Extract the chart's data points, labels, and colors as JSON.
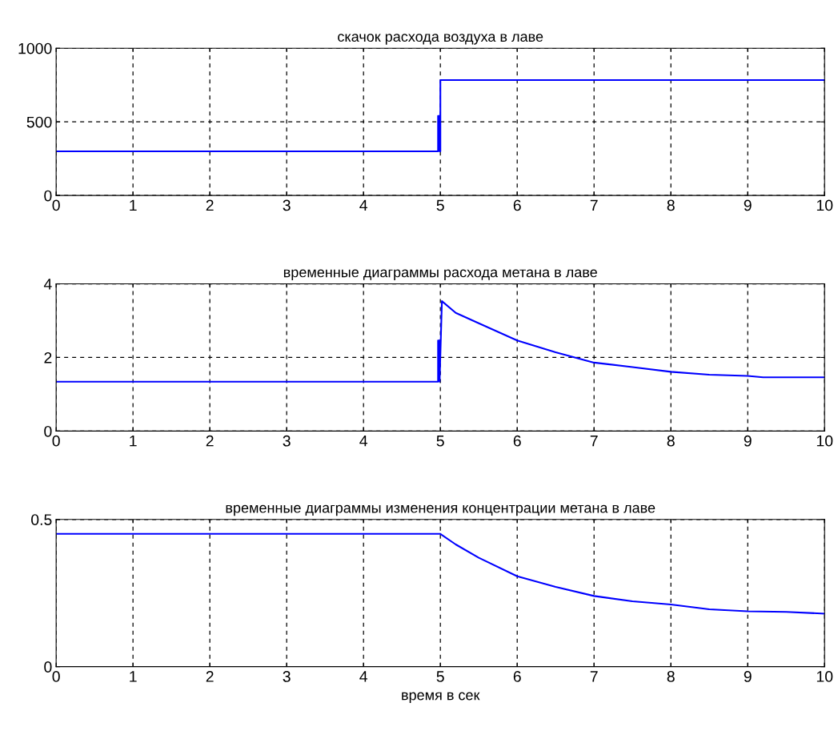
{
  "chart_data": [
    {
      "type": "line",
      "title": "скачок расхода воздуха в лаве",
      "xlim": [
        0,
        10
      ],
      "ylim": [
        0,
        1000
      ],
      "xticks": [
        0,
        1,
        2,
        3,
        4,
        5,
        6,
        7,
        8,
        9,
        10
      ],
      "yticks": [
        0,
        500,
        1000
      ],
      "grid": true,
      "line_style": "solid",
      "marker": "none",
      "series": [
        {
          "color": "#0000ff",
          "x": [
            0,
            4.97,
            4.97,
            4.99,
            4.99,
            5.0,
            5.0,
            10
          ],
          "values": [
            300,
            300,
            540,
            540,
            300,
            300,
            784,
            784
          ]
        }
      ]
    },
    {
      "type": "line",
      "title": "временные диаграммы расхода метана в лаве",
      "xlim": [
        0,
        10
      ],
      "ylim": [
        0,
        4
      ],
      "xticks": [
        0,
        1,
        2,
        3,
        4,
        5,
        6,
        7,
        8,
        9,
        10
      ],
      "yticks": [
        0,
        2,
        4
      ],
      "grid": true,
      "line_style": "solid",
      "marker": "none",
      "series": [
        {
          "color": "#0000ff",
          "x": [
            0,
            4.97,
            4.97,
            4.99,
            4.99,
            5.02,
            5.2,
            5.5,
            6,
            6.5,
            7,
            7.5,
            8,
            8.5,
            9,
            9.2,
            10
          ],
          "values": [
            1.34,
            1.34,
            2.46,
            2.46,
            1.34,
            3.53,
            3.21,
            2.93,
            2.46,
            2.14,
            1.86,
            1.74,
            1.61,
            1.53,
            1.5,
            1.46,
            1.46
          ]
        }
      ]
    },
    {
      "type": "line",
      "title": "временные диаграммы изменения концентрации метана в лаве",
      "xlabel": "время в сек",
      "xlim": [
        0,
        10
      ],
      "ylim": [
        0,
        0.5
      ],
      "xticks": [
        0,
        1,
        2,
        3,
        4,
        5,
        6,
        7,
        8,
        9,
        10
      ],
      "yticks": [
        0,
        0.5
      ],
      "grid": true,
      "line_style": "solid",
      "marker": "none",
      "series": [
        {
          "color": "#0000ff",
          "x": [
            0,
            5.0,
            5.2,
            5.5,
            6,
            6.5,
            7,
            7.5,
            8,
            8.5,
            9,
            9.5,
            10
          ],
          "values": [
            0.451,
            0.451,
            0.415,
            0.37,
            0.307,
            0.271,
            0.24,
            0.222,
            0.211,
            0.195,
            0.188,
            0.186,
            0.18
          ]
        }
      ]
    }
  ]
}
